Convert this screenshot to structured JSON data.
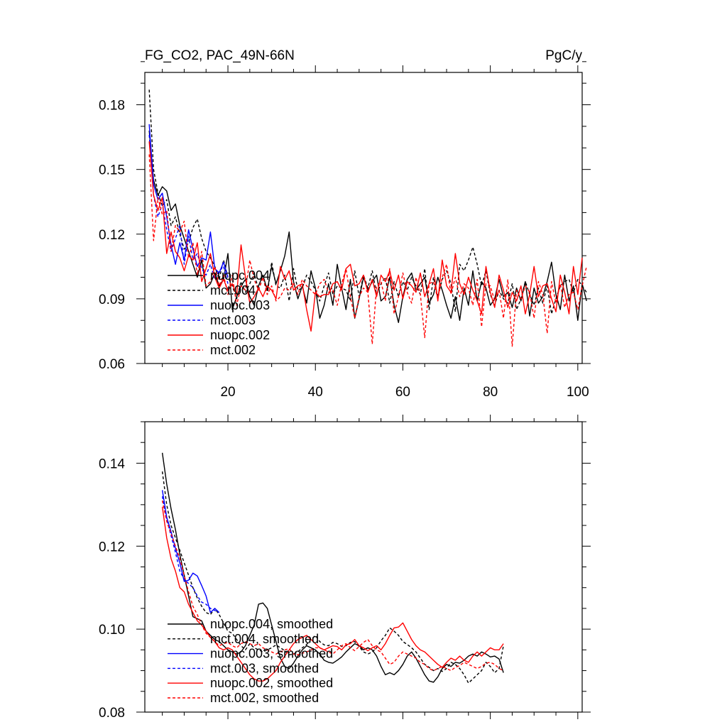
{
  "chart_data": [
    {
      "type": "line",
      "title": "FG_CO2, PAC_49N-66N",
      "units": "PgC/y",
      "xlabel": "",
      "ylabel": "",
      "xlim": [
        1,
        101
      ],
      "ylim": [
        0.06,
        0.195
      ],
      "xticks": [
        20,
        40,
        60,
        80,
        100
      ],
      "yticks": [
        0.06,
        0.09,
        0.12,
        0.15,
        0.18
      ],
      "ytick_labels": [
        "0.06",
        "0.09",
        "0.12",
        "0.15",
        "0.18"
      ],
      "xtick_labels": [
        "20",
        "40",
        "60",
        "80",
        "100"
      ],
      "legend_position": "lower-left",
      "series": [
        {
          "name": "nuopc.004",
          "color": "#000000",
          "dash": "solid",
          "x_start": 2,
          "values": [
            0.168,
            0.145,
            0.138,
            0.142,
            0.14,
            0.131,
            0.134,
            0.124,
            0.118,
            0.112,
            0.106,
            0.1,
            0.108,
            0.095,
            0.097,
            0.102,
            0.096,
            0.099,
            0.111,
            0.085,
            0.091,
            0.096,
            0.099,
            0.091,
            0.087,
            0.096,
            0.101,
            0.094,
            0.105,
            0.097,
            0.103,
            0.11,
            0.121,
            0.098,
            0.09,
            0.096,
            0.088,
            0.103,
            0.095,
            0.081,
            0.087,
            0.097,
            0.087,
            0.106,
            0.095,
            0.085,
            0.099,
            0.081,
            0.09,
            0.1,
            0.094,
            0.098,
            0.101,
            0.089,
            0.091,
            0.1,
            0.087,
            0.079,
            0.091,
            0.099,
            0.102,
            0.094,
            0.097,
            0.1,
            0.088,
            0.092,
            0.1,
            0.094,
            0.087,
            0.081,
            0.091,
            0.08,
            0.095,
            0.087,
            0.103,
            0.089,
            0.098,
            0.095,
            0.087,
            0.09,
            0.099,
            0.091,
            0.093,
            0.086,
            0.095,
            0.089,
            0.098,
            0.082,
            0.095,
            0.088,
            0.091,
            0.098,
            0.107,
            0.092,
            0.085,
            0.101,
            0.089,
            0.096,
            0.08,
            0.097,
            0.089
          ]
        },
        {
          "name": "mct.004",
          "color": "#000000",
          "dash": "dashed",
          "x_start": 2,
          "values": [
            0.187,
            0.15,
            0.139,
            0.133,
            0.136,
            0.124,
            0.128,
            0.12,
            0.113,
            0.116,
            0.123,
            0.127,
            0.118,
            0.112,
            0.109,
            0.105,
            0.099,
            0.108,
            0.1,
            0.096,
            0.09,
            0.098,
            0.093,
            0.097,
            0.102,
            0.094,
            0.1,
            0.092,
            0.107,
            0.096,
            0.095,
            0.101,
            0.089,
            0.104,
            0.094,
            0.095,
            0.101,
            0.098,
            0.094,
            0.089,
            0.096,
            0.102,
            0.092,
            0.096,
            0.095,
            0.094,
            0.089,
            0.103,
            0.091,
            0.101,
            0.095,
            0.103,
            0.092,
            0.097,
            0.1,
            0.088,
            0.098,
            0.091,
            0.098,
            0.094,
            0.1,
            0.096,
            0.092,
            0.104,
            0.085,
            0.1,
            0.091,
            0.099,
            0.103,
            0.097,
            0.084,
            0.106,
            0.103,
            0.108,
            0.114,
            0.106,
            0.096,
            0.103,
            0.092,
            0.087,
            0.094,
            0.09,
            0.088,
            0.097,
            0.085,
            0.09,
            0.098,
            0.092,
            0.087,
            0.095,
            0.088,
            0.096,
            0.083,
            0.09,
            0.096,
            0.098,
            0.099,
            0.093,
            0.099,
            0.096,
            0.093
          ]
        },
        {
          "name": "nuopc.003",
          "color": "#0000ff",
          "dash": "solid",
          "x_start": 2,
          "values": [
            0.171,
            0.143,
            0.136,
            0.139,
            0.128,
            0.115,
            0.106,
            0.116,
            0.108,
            0.122,
            0.113,
            0.105,
            0.109,
            0.108,
            0.121,
            0.104,
            0.102,
            0.107,
            0.1
          ]
        },
        {
          "name": "mct.003",
          "color": "#0000ff",
          "dash": "dashed",
          "x_start": 2,
          "values": [
            0.166,
            0.138,
            0.128,
            0.134,
            0.122,
            0.112,
            0.118,
            0.124,
            0.106,
            0.119,
            0.108,
            0.111,
            0.104,
            0.101,
            0.106,
            0.099,
            0.103,
            0.105,
            0.097
          ]
        },
        {
          "name": "nuopc.002",
          "color": "#ff0000",
          "dash": "solid",
          "x_start": 2,
          "values": [
            0.163,
            0.138,
            0.131,
            0.137,
            0.111,
            0.121,
            0.112,
            0.109,
            0.103,
            0.11,
            0.108,
            0.116,
            0.098,
            0.104,
            0.111,
            0.1,
            0.095,
            0.099,
            0.094,
            0.097,
            0.092,
            0.115,
            0.1,
            0.088,
            0.091,
            0.095,
            0.091,
            0.096,
            0.094,
            0.09,
            0.105,
            0.099,
            0.103,
            0.094,
            0.096,
            0.097,
            0.085,
            0.075,
            0.093,
            0.091,
            0.092,
            0.092,
            0.097,
            0.098,
            0.094,
            0.104,
            0.106,
            0.096,
            0.097,
            0.101,
            0.093,
            0.099,
            0.091,
            0.101,
            0.098,
            0.103,
            0.094,
            0.101,
            0.09,
            0.098,
            0.096,
            0.093,
            0.102,
            0.091,
            0.097,
            0.104,
            0.089,
            0.108,
            0.096,
            0.093,
            0.111,
            0.097,
            0.092,
            0.1,
            0.094,
            0.089,
            0.083,
            0.105,
            0.093,
            0.086,
            0.101,
            0.094,
            0.086,
            0.093,
            0.089,
            0.096,
            0.083,
            0.092,
            0.105,
            0.091,
            0.096,
            0.097,
            0.09,
            0.084,
            0.101,
            0.093,
            0.083,
            0.105,
            0.092,
            0.109
          ]
        },
        {
          "name": "mct.002",
          "color": "#ff0000",
          "dash": "dashed",
          "x_start": 2,
          "values": [
            0.157,
            0.117,
            0.137,
            0.129,
            0.131,
            0.112,
            0.124,
            0.121,
            0.126,
            0.109,
            0.116,
            0.101,
            0.112,
            0.096,
            0.098,
            0.105,
            0.096,
            0.101,
            0.092,
            0.101,
            0.087,
            0.096,
            0.094,
            0.108,
            0.099,
            0.094,
            0.1,
            0.092,
            0.096,
            0.089,
            0.091,
            0.095,
            0.094,
            0.097,
            0.092,
            0.099,
            0.096,
            0.094,
            0.092,
            0.097,
            0.099,
            0.093,
            0.094,
            0.087,
            0.097,
            0.104,
            0.091,
            0.081,
            0.091,
            0.095,
            0.093,
            0.069,
            0.096,
            0.098,
            0.089,
            0.104,
            0.083,
            0.091,
            0.102,
            0.093,
            0.088,
            0.1,
            0.092,
            0.072,
            0.097,
            0.098,
            0.09,
            0.1,
            0.106,
            0.092,
            0.1,
            0.091,
            0.097,
            0.095,
            0.087,
            0.099,
            0.077,
            0.097,
            0.096,
            0.089,
            0.094,
            0.081,
            0.099,
            0.068,
            0.094,
            0.09,
            0.096,
            0.093,
            0.081,
            0.098,
            0.092,
            0.074,
            0.098,
            0.088,
            0.097,
            0.086,
            0.092,
            0.093,
            0.085,
            0.096,
            0.105
          ]
        }
      ]
    },
    {
      "type": "line",
      "title": "",
      "xlabel": "",
      "ylabel": "",
      "xlim": [
        1,
        101
      ],
      "ylim": [
        0.08,
        0.15
      ],
      "xticks": [
        20,
        40,
        60,
        80,
        100
      ],
      "yticks": [
        0.08,
        0.1,
        0.12,
        0.14
      ],
      "ytick_labels": [
        "0.08",
        "0.10",
        "0.12",
        "0.14"
      ],
      "legend_position": "lower-left",
      "series": [
        {
          "name": "nuopc.004, smoothed",
          "color": "#000000",
          "dash": "solid",
          "x_start": 5,
          "values": [
            0.1425,
            0.135,
            0.129,
            0.124,
            0.118,
            0.113,
            0.108,
            0.103,
            0.1025,
            0.102,
            0.0995,
            0.0985,
            0.0975,
            0.097,
            0.096,
            0.095,
            0.0945,
            0.094,
            0.0945,
            0.096,
            0.0985,
            0.101,
            0.106,
            0.1063,
            0.105,
            0.101,
            0.097,
            0.093,
            0.091,
            0.0905,
            0.0918,
            0.0935,
            0.095,
            0.096,
            0.0955,
            0.095,
            0.094,
            0.0925,
            0.092,
            0.0918,
            0.0925,
            0.0933,
            0.0945,
            0.0955,
            0.0965,
            0.096,
            0.095,
            0.0955,
            0.095,
            0.0935,
            0.091,
            0.089,
            0.0895,
            0.089,
            0.09,
            0.0915,
            0.0935,
            0.0945,
            0.093,
            0.091,
            0.089,
            0.0875,
            0.0872,
            0.0885,
            0.0905,
            0.0915,
            0.091,
            0.092,
            0.0918,
            0.0925,
            0.0935,
            0.094,
            0.0935,
            0.0945,
            0.094,
            0.0933,
            0.0935,
            0.0928,
            0.0895
          ]
        },
        {
          "name": "mct.004, smoothed",
          "color": "#000000",
          "dash": "dashed",
          "x_start": 5,
          "values": [
            0.138,
            0.13,
            0.125,
            0.122,
            0.119,
            0.116,
            0.113,
            0.11,
            0.1075,
            0.1055,
            0.104,
            0.1035,
            0.105,
            0.1035,
            0.1015,
            0.0995,
            0.099,
            0.0975,
            0.096,
            0.095,
            0.0965,
            0.0955,
            0.095,
            0.0945,
            0.095,
            0.0955,
            0.0962,
            0.0955,
            0.0948,
            0.0938,
            0.094,
            0.0945,
            0.0955,
            0.0963,
            0.0975,
            0.0985,
            0.097,
            0.0962,
            0.096,
            0.0968,
            0.0965,
            0.0958,
            0.096,
            0.0968,
            0.097,
            0.0958,
            0.0945,
            0.094,
            0.0945,
            0.0955,
            0.0972,
            0.0985,
            0.1003,
            0.0995,
            0.0985,
            0.097,
            0.0963,
            0.0955,
            0.0945,
            0.093,
            0.0915,
            0.0908,
            0.09,
            0.0905,
            0.0898,
            0.0905,
            0.092,
            0.0915,
            0.0905,
            0.089,
            0.087,
            0.088,
            0.089,
            0.09,
            0.092,
            0.091,
            0.0895,
            0.0905,
            0.096
          ]
        },
        {
          "name": "nuopc.003, smoothed",
          "color": "#0000ff",
          "dash": "solid",
          "x_start": 5,
          "values": [
            0.1335,
            0.127,
            0.1235,
            0.1195,
            0.116,
            0.1115,
            0.1118,
            0.1135,
            0.1128,
            0.1105,
            0.108,
            0.104,
            0.105,
            0.104
          ]
        },
        {
          "name": "mct.003, smoothed",
          "color": "#0000ff",
          "dash": "dashed",
          "x_start": 5,
          "values": [
            0.132,
            0.1265,
            0.1225,
            0.1185,
            0.114,
            0.112,
            0.111,
            0.11,
            0.108,
            0.1065,
            0.106,
            0.105,
            0.1045,
            0.104
          ]
        },
        {
          "name": "nuopc.002, smoothed",
          "color": "#ff0000",
          "dash": "solid",
          "x_start": 5,
          "values": [
            0.1295,
            0.122,
            0.117,
            0.114,
            0.11,
            0.109,
            0.106,
            0.104,
            0.102,
            0.101,
            0.0995,
            0.098,
            0.097,
            0.0955,
            0.095,
            0.0955,
            0.095,
            0.0935,
            0.092,
            0.0905,
            0.089,
            0.088,
            0.0875,
            0.0875,
            0.088,
            0.089,
            0.09,
            0.092,
            0.0935,
            0.095,
            0.0965,
            0.0975,
            0.098,
            0.0985,
            0.0975,
            0.0965,
            0.0955,
            0.095,
            0.0955,
            0.096,
            0.0958,
            0.095,
            0.0962,
            0.0965,
            0.0975,
            0.096,
            0.0955,
            0.0948,
            0.0955,
            0.096,
            0.095,
            0.0965,
            0.0985,
            0.1003,
            0.1005,
            0.1015,
            0.0995,
            0.0975,
            0.096,
            0.095,
            0.0945,
            0.0935,
            0.0925,
            0.0915,
            0.0908,
            0.092,
            0.093,
            0.0925,
            0.0935,
            0.0925,
            0.092,
            0.0935,
            0.0945,
            0.0935,
            0.0945,
            0.0955,
            0.095,
            0.095,
            0.0965
          ]
        },
        {
          "name": "mct.002, smoothed",
          "color": "#ff0000",
          "dash": "dashed",
          "x_start": 5,
          "values": [
            0.131,
            0.126,
            0.123,
            0.12,
            0.117,
            0.113,
            0.109,
            0.1055,
            0.1035,
            0.101,
            0.099,
            0.098,
            0.097,
            0.096,
            0.0965,
            0.0968,
            0.096,
            0.0955,
            0.0965,
            0.097,
            0.0965,
            0.096,
            0.0965,
            0.0955,
            0.095,
            0.0945,
            0.094,
            0.0945,
            0.095,
            0.0953,
            0.094,
            0.0938,
            0.0942,
            0.0945,
            0.095,
            0.0955,
            0.0955,
            0.095,
            0.0945,
            0.094,
            0.095,
            0.096,
            0.0965,
            0.0955,
            0.0948,
            0.0958,
            0.0968,
            0.0975,
            0.096,
            0.095,
            0.0945,
            0.093,
            0.0915,
            0.092,
            0.0935,
            0.0945,
            0.094,
            0.0935,
            0.093,
            0.092,
            0.0915,
            0.0905,
            0.09,
            0.0905,
            0.091,
            0.0905,
            0.09,
            0.0908,
            0.0912,
            0.092,
            0.0915,
            0.091,
            0.0905,
            0.091,
            0.0918,
            0.092,
            0.0915,
            0.0905,
            0.09
          ]
        }
      ]
    }
  ]
}
